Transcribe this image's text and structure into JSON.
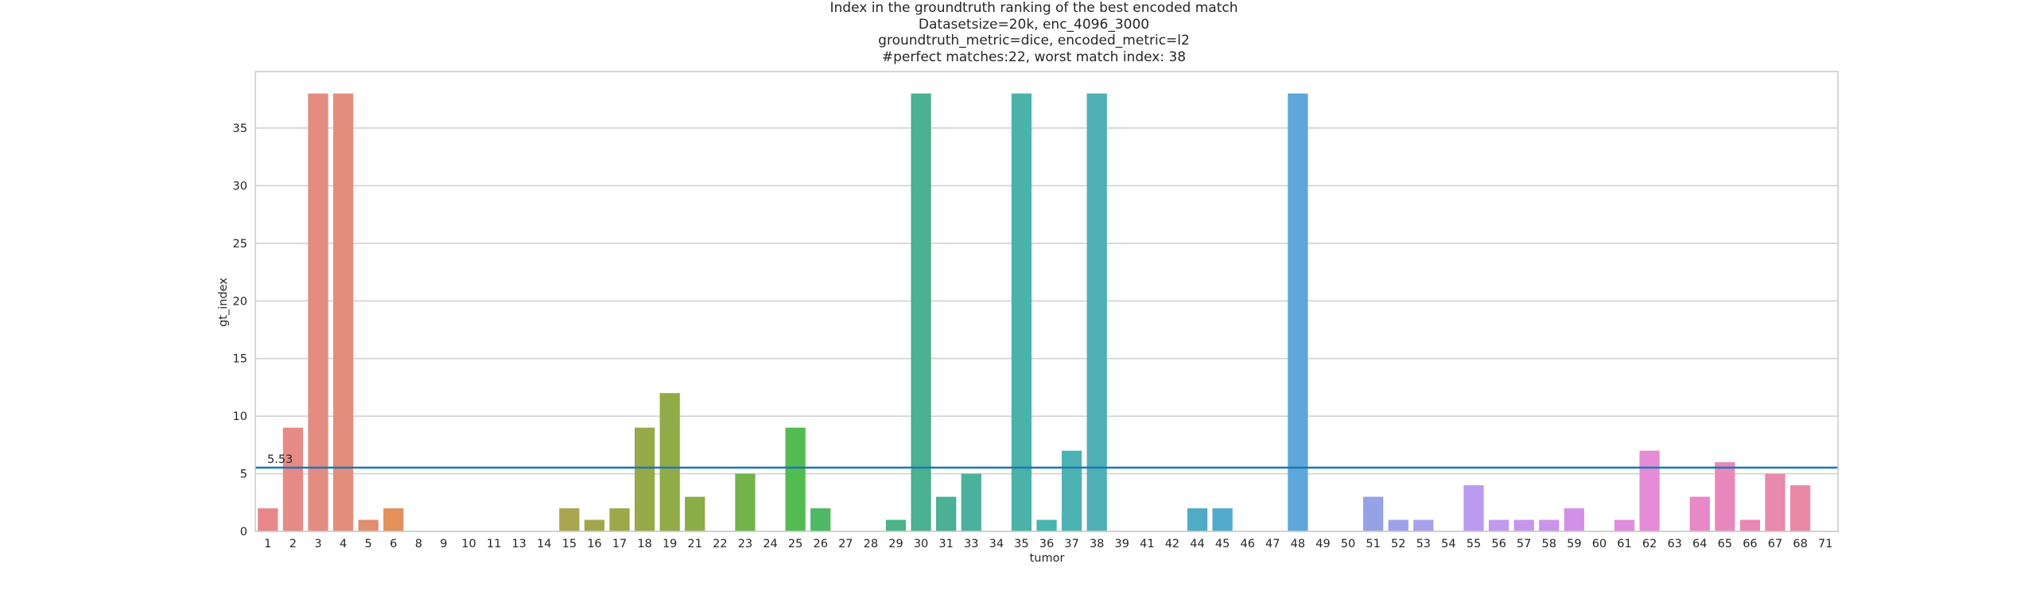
{
  "chart_data": {
    "type": "bar",
    "title_lines": [
      "Index in the groundtruth ranking of the best encoded match",
      "Datasetsize=20k, enc_4096_3000",
      "groundtruth_metric=dice, encoded_metric=l2",
      "#perfect matches:22, worst match index: 38"
    ],
    "xlabel": "tumor",
    "ylabel": "gt_index",
    "ylim": [
      0,
      39.9
    ],
    "yticks": [
      0,
      5,
      10,
      15,
      20,
      25,
      30,
      35
    ],
    "grid": "horizontal",
    "categories": [
      "1",
      "2",
      "3",
      "4",
      "5",
      "6",
      "8",
      "9",
      "10",
      "11",
      "13",
      "14",
      "15",
      "16",
      "17",
      "18",
      "19",
      "21",
      "22",
      "23",
      "24",
      "25",
      "26",
      "27",
      "28",
      "29",
      "30",
      "31",
      "33",
      "34",
      "35",
      "36",
      "37",
      "38",
      "39",
      "41",
      "42",
      "44",
      "45",
      "46",
      "47",
      "48",
      "49",
      "50",
      "51",
      "52",
      "53",
      "54",
      "55",
      "56",
      "57",
      "58",
      "59",
      "60",
      "61",
      "62",
      "63",
      "64",
      "65",
      "66",
      "67",
      "68",
      "71"
    ],
    "values": [
      2,
      9,
      38,
      38,
      1,
      2,
      0,
      0,
      0,
      0,
      0,
      0,
      2,
      1,
      2,
      9,
      12,
      3,
      0,
      5,
      0,
      9,
      2,
      0,
      0,
      1,
      38,
      3,
      5,
      0,
      38,
      1,
      7,
      38,
      0,
      0,
      0,
      2,
      2,
      0,
      0,
      38,
      0,
      0,
      3,
      1,
      1,
      0,
      4,
      1,
      1,
      1,
      2,
      0,
      1,
      7,
      0,
      3,
      6,
      1,
      5,
      4,
      0
    ],
    "colors": [
      "#e8888a",
      "#e68a86",
      "#e48c82",
      "#e38e7d",
      "#e08e6d",
      "#e4915c",
      "#d99a4e",
      "#c9a14d",
      "#bea54d",
      "#b4a84d",
      "#aaab4c",
      "#a2ae4c",
      "#aaa54f",
      "#a3a74b",
      "#9da84a",
      "#97a949",
      "#91ab48",
      "#8aad47",
      "#7fb049",
      "#72b34a",
      "#61b84d",
      "#52bb52",
      "#4db866",
      "#4db774",
      "#4db77e",
      "#4bb486",
      "#4bb08f",
      "#4ab096",
      "#4bb19d",
      "#49b2a4",
      "#4ab3a9",
      "#4ab4ae",
      "#4cb3b2",
      "#4eb0b6",
      "#4fafbb",
      "#4eadbf",
      "#4dacc2",
      "#4fabc6",
      "#52aacb",
      "#56a9d0",
      "#5aa8d5",
      "#5ea7da",
      "#6aa6dc",
      "#82a5e0",
      "#94a2e6",
      "#9ea1e9",
      "#a7a0ec",
      "#b09eef",
      "#b99cf0",
      "#c199ef",
      "#c696ed",
      "#cc93eb",
      "#d490e8",
      "#dc8ee3",
      "#e18ddd",
      "#e58cd6",
      "#e78bcf",
      "#e789c6",
      "#e888bd",
      "#e888b5",
      "#e889ae",
      "#e889a6",
      "#e8899e"
    ],
    "mean_line": {
      "value": 5.53,
      "label": "5.53",
      "color": "#1f77b4"
    }
  }
}
